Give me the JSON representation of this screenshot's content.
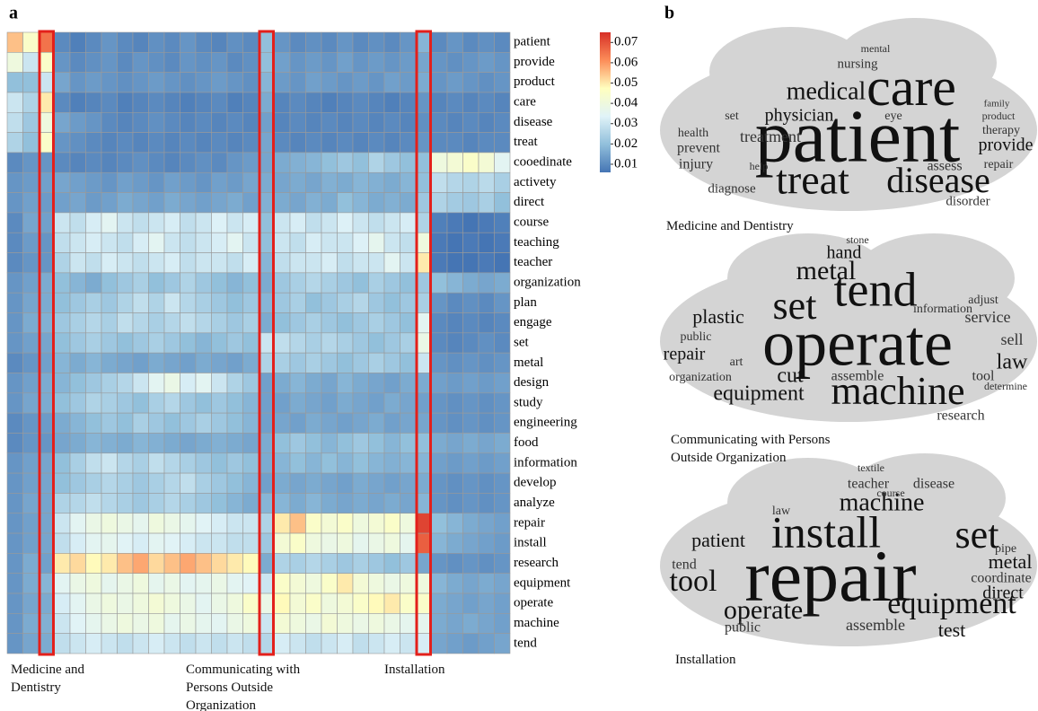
{
  "panel_labels": [
    "a",
    "b"
  ],
  "chart_data": {
    "type": "heatmap",
    "rows": [
      "patient",
      "provide",
      "product",
      "care",
      "disease",
      "treat",
      "cooedinate",
      "activety",
      "direct",
      "course",
      "teaching",
      "teacher",
      "organization",
      "plan",
      "engage",
      "set",
      "metal",
      "design",
      "study",
      "engineering",
      "food",
      "information",
      "develop",
      "analyze",
      "repair",
      "install",
      "research",
      "equipment",
      "operate",
      "machine",
      "tend"
    ],
    "categories": [
      null,
      null,
      "Medicine and Dentistry",
      null,
      null,
      null,
      null,
      null,
      null,
      null,
      null,
      null,
      null,
      null,
      null,
      null,
      "Communicating with Persons Outside Organization",
      null,
      null,
      null,
      null,
      null,
      null,
      null,
      null,
      null,
      "Installation",
      null,
      null,
      null,
      null,
      null
    ],
    "highlight_color": "#e3201b",
    "colormap": [
      "#4575b4",
      "#91bfdb",
      "#e0f3f8",
      "#ffffbf",
      "#fc8d59",
      "#d73027"
    ],
    "zlim": [
      0.006,
      0.075
    ],
    "zticks": [
      0.01,
      0.02,
      0.03,
      0.04,
      0.05,
      0.06,
      0.07
    ],
    "values": [
      [
        0.055,
        0.045,
        0.065,
        0.01,
        0.008,
        0.01,
        0.012,
        0.01,
        0.009,
        0.011,
        0.01,
        0.012,
        0.01,
        0.009,
        0.011,
        0.01,
        0.02,
        0.012,
        0.01,
        0.011,
        0.01,
        0.012,
        0.01,
        0.011,
        0.01,
        0.012,
        0.018,
        0.01,
        0.012,
        0.01,
        0.011,
        0.01
      ],
      [
        0.04,
        0.03,
        0.045,
        0.012,
        0.01,
        0.011,
        0.012,
        0.01,
        0.012,
        0.011,
        0.01,
        0.012,
        0.011,
        0.012,
        0.01,
        0.011,
        0.02,
        0.014,
        0.012,
        0.013,
        0.012,
        0.014,
        0.012,
        0.013,
        0.012,
        0.013,
        0.015,
        0.012,
        0.011,
        0.012,
        0.013,
        0.012
      ],
      [
        0.02,
        0.02,
        0.03,
        0.015,
        0.012,
        0.013,
        0.012,
        0.011,
        0.012,
        0.013,
        0.012,
        0.011,
        0.012,
        0.013,
        0.012,
        0.011,
        0.018,
        0.013,
        0.012,
        0.014,
        0.013,
        0.012,
        0.013,
        0.012,
        0.014,
        0.013,
        0.016,
        0.012,
        0.013,
        0.012,
        0.011,
        0.012
      ],
      [
        0.03,
        0.025,
        0.05,
        0.01,
        0.008,
        0.009,
        0.01,
        0.008,
        0.009,
        0.01,
        0.009,
        0.008,
        0.009,
        0.01,
        0.008,
        0.009,
        0.016,
        0.009,
        0.01,
        0.009,
        0.008,
        0.009,
        0.01,
        0.009,
        0.008,
        0.009,
        0.012,
        0.009,
        0.01,
        0.009,
        0.01,
        0.009
      ],
      [
        0.028,
        0.022,
        0.04,
        0.015,
        0.013,
        0.012,
        0.01,
        0.009,
        0.01,
        0.011,
        0.01,
        0.009,
        0.01,
        0.009,
        0.01,
        0.009,
        0.014,
        0.009,
        0.01,
        0.009,
        0.01,
        0.009,
        0.01,
        0.009,
        0.01,
        0.009,
        0.011,
        0.01,
        0.009,
        0.01,
        0.009,
        0.01
      ],
      [
        0.025,
        0.02,
        0.045,
        0.012,
        0.011,
        0.01,
        0.009,
        0.01,
        0.009,
        0.01,
        0.009,
        0.01,
        0.009,
        0.01,
        0.009,
        0.01,
        0.015,
        0.01,
        0.009,
        0.01,
        0.009,
        0.01,
        0.009,
        0.01,
        0.009,
        0.01,
        0.012,
        0.01,
        0.01,
        0.009,
        0.01,
        0.01
      ],
      [
        0.01,
        0.012,
        0.012,
        0.01,
        0.009,
        0.01,
        0.009,
        0.01,
        0.011,
        0.01,
        0.009,
        0.01,
        0.011,
        0.01,
        0.012,
        0.013,
        0.015,
        0.016,
        0.017,
        0.018,
        0.02,
        0.022,
        0.02,
        0.025,
        0.022,
        0.02,
        0.02,
        0.04,
        0.042,
        0.045,
        0.042,
        0.035
      ],
      [
        0.012,
        0.013,
        0.014,
        0.015,
        0.014,
        0.013,
        0.012,
        0.014,
        0.013,
        0.012,
        0.014,
        0.013,
        0.012,
        0.014,
        0.013,
        0.015,
        0.016,
        0.015,
        0.016,
        0.015,
        0.017,
        0.016,
        0.018,
        0.017,
        0.016,
        0.018,
        0.02,
        0.028,
        0.026,
        0.025,
        0.027,
        0.024
      ],
      [
        0.012,
        0.014,
        0.013,
        0.014,
        0.015,
        0.013,
        0.014,
        0.016,
        0.015,
        0.014,
        0.016,
        0.015,
        0.014,
        0.015,
        0.016,
        0.014,
        0.017,
        0.016,
        0.015,
        0.017,
        0.016,
        0.02,
        0.018,
        0.016,
        0.017,
        0.016,
        0.022,
        0.025,
        0.023,
        0.022,
        0.024,
        0.02
      ],
      [
        0.01,
        0.015,
        0.014,
        0.03,
        0.028,
        0.032,
        0.035,
        0.03,
        0.028,
        0.03,
        0.032,
        0.028,
        0.03,
        0.033,
        0.03,
        0.032,
        0.02,
        0.03,
        0.032,
        0.028,
        0.03,
        0.033,
        0.03,
        0.028,
        0.03,
        0.032,
        0.025,
        0.008,
        0.007,
        0.006,
        0.007,
        0.008
      ],
      [
        0.01,
        0.013,
        0.012,
        0.028,
        0.03,
        0.032,
        0.03,
        0.028,
        0.032,
        0.035,
        0.03,
        0.028,
        0.03,
        0.032,
        0.035,
        0.03,
        0.02,
        0.03,
        0.028,
        0.032,
        0.03,
        0.03,
        0.033,
        0.036,
        0.03,
        0.028,
        0.04,
        0.007,
        0.006,
        0.007,
        0.006,
        0.007
      ],
      [
        0.01,
        0.012,
        0.012,
        0.025,
        0.03,
        0.028,
        0.032,
        0.03,
        0.028,
        0.03,
        0.032,
        0.028,
        0.03,
        0.03,
        0.028,
        0.032,
        0.018,
        0.028,
        0.03,
        0.03,
        0.032,
        0.028,
        0.03,
        0.03,
        0.035,
        0.03,
        0.05,
        0.007,
        0.006,
        0.006,
        0.007,
        0.006
      ],
      [
        0.012,
        0.014,
        0.016,
        0.02,
        0.018,
        0.016,
        0.02,
        0.022,
        0.024,
        0.02,
        0.022,
        0.025,
        0.022,
        0.02,
        0.018,
        0.02,
        0.016,
        0.022,
        0.024,
        0.026,
        0.024,
        0.022,
        0.02,
        0.024,
        0.022,
        0.02,
        0.022,
        0.02,
        0.018,
        0.016,
        0.015,
        0.016
      ],
      [
        0.012,
        0.015,
        0.016,
        0.02,
        0.022,
        0.024,
        0.022,
        0.025,
        0.028,
        0.025,
        0.03,
        0.026,
        0.024,
        0.022,
        0.02,
        0.022,
        0.018,
        0.022,
        0.024,
        0.02,
        0.022,
        0.024,
        0.026,
        0.022,
        0.02,
        0.022,
        0.024,
        0.012,
        0.01,
        0.011,
        0.01,
        0.012
      ],
      [
        0.012,
        0.016,
        0.017,
        0.022,
        0.024,
        0.026,
        0.024,
        0.028,
        0.026,
        0.024,
        0.026,
        0.028,
        0.026,
        0.024,
        0.022,
        0.024,
        0.016,
        0.02,
        0.022,
        0.024,
        0.022,
        0.02,
        0.022,
        0.024,
        0.022,
        0.02,
        0.035,
        0.01,
        0.009,
        0.01,
        0.009,
        0.01
      ],
      [
        0.012,
        0.014,
        0.015,
        0.02,
        0.022,
        0.024,
        0.022,
        0.02,
        0.022,
        0.024,
        0.022,
        0.02,
        0.018,
        0.02,
        0.022,
        0.02,
        0.03,
        0.028,
        0.026,
        0.024,
        0.026,
        0.024,
        0.022,
        0.02,
        0.022,
        0.024,
        0.038,
        0.01,
        0.009,
        0.01,
        0.011,
        0.01
      ],
      [
        0.01,
        0.012,
        0.014,
        0.018,
        0.016,
        0.018,
        0.016,
        0.015,
        0.014,
        0.016,
        0.015,
        0.014,
        0.016,
        0.015,
        0.014,
        0.016,
        0.025,
        0.024,
        0.022,
        0.024,
        0.022,
        0.02,
        0.022,
        0.024,
        0.022,
        0.02,
        0.03,
        0.012,
        0.011,
        0.012,
        0.011,
        0.012
      ],
      [
        0.012,
        0.014,
        0.016,
        0.018,
        0.02,
        0.022,
        0.024,
        0.026,
        0.03,
        0.035,
        0.038,
        0.032,
        0.035,
        0.03,
        0.025,
        0.022,
        0.014,
        0.016,
        0.018,
        0.016,
        0.015,
        0.018,
        0.016,
        0.015,
        0.014,
        0.016,
        0.016,
        0.014,
        0.013,
        0.014,
        0.013,
        0.014
      ],
      [
        0.012,
        0.015,
        0.016,
        0.02,
        0.022,
        0.025,
        0.024,
        0.022,
        0.02,
        0.024,
        0.026,
        0.022,
        0.02,
        0.022,
        0.02,
        0.018,
        0.014,
        0.014,
        0.016,
        0.015,
        0.014,
        0.016,
        0.015,
        0.014,
        0.016,
        0.015,
        0.014,
        0.012,
        0.011,
        0.012,
        0.011,
        0.012
      ],
      [
        0.01,
        0.012,
        0.013,
        0.016,
        0.018,
        0.02,
        0.022,
        0.02,
        0.024,
        0.022,
        0.02,
        0.022,
        0.024,
        0.022,
        0.02,
        0.018,
        0.014,
        0.015,
        0.014,
        0.016,
        0.015,
        0.014,
        0.015,
        0.016,
        0.014,
        0.015,
        0.015,
        0.012,
        0.011,
        0.012,
        0.011,
        0.012
      ],
      [
        0.01,
        0.012,
        0.012,
        0.015,
        0.016,
        0.018,
        0.017,
        0.016,
        0.018,
        0.017,
        0.016,
        0.015,
        0.016,
        0.017,
        0.016,
        0.015,
        0.016,
        0.02,
        0.022,
        0.02,
        0.018,
        0.02,
        0.022,
        0.02,
        0.018,
        0.02,
        0.02,
        0.016,
        0.015,
        0.016,
        0.015,
        0.016
      ],
      [
        0.012,
        0.014,
        0.015,
        0.02,
        0.024,
        0.028,
        0.03,
        0.026,
        0.024,
        0.028,
        0.026,
        0.024,
        0.022,
        0.02,
        0.022,
        0.02,
        0.016,
        0.018,
        0.02,
        0.018,
        0.02,
        0.018,
        0.02,
        0.018,
        0.017,
        0.018,
        0.018,
        0.014,
        0.013,
        0.014,
        0.013,
        0.014
      ],
      [
        0.012,
        0.014,
        0.015,
        0.02,
        0.022,
        0.024,
        0.026,
        0.024,
        0.022,
        0.024,
        0.026,
        0.028,
        0.024,
        0.022,
        0.02,
        0.018,
        0.014,
        0.016,
        0.015,
        0.016,
        0.015,
        0.014,
        0.016,
        0.015,
        0.014,
        0.015,
        0.016,
        0.012,
        0.011,
        0.012,
        0.011,
        0.012
      ],
      [
        0.012,
        0.015,
        0.015,
        0.025,
        0.026,
        0.028,
        0.026,
        0.024,
        0.022,
        0.024,
        0.026,
        0.024,
        0.022,
        0.02,
        0.018,
        0.016,
        0.018,
        0.018,
        0.016,
        0.018,
        0.016,
        0.015,
        0.016,
        0.015,
        0.016,
        0.015,
        0.018,
        0.012,
        0.011,
        0.012,
        0.011,
        0.012
      ],
      [
        0.012,
        0.014,
        0.015,
        0.03,
        0.035,
        0.038,
        0.04,
        0.038,
        0.036,
        0.04,
        0.038,
        0.036,
        0.034,
        0.032,
        0.03,
        0.03,
        0.025,
        0.05,
        0.055,
        0.045,
        0.042,
        0.045,
        0.04,
        0.042,
        0.045,
        0.04,
        0.072,
        0.02,
        0.018,
        0.016,
        0.015,
        0.014
      ],
      [
        0.012,
        0.014,
        0.015,
        0.028,
        0.032,
        0.035,
        0.036,
        0.034,
        0.032,
        0.035,
        0.034,
        0.032,
        0.03,
        0.03,
        0.028,
        0.028,
        0.022,
        0.042,
        0.045,
        0.04,
        0.038,
        0.04,
        0.036,
        0.038,
        0.04,
        0.036,
        0.068,
        0.018,
        0.016,
        0.015,
        0.014,
        0.013
      ],
      [
        0.012,
        0.016,
        0.014,
        0.05,
        0.052,
        0.048,
        0.05,
        0.055,
        0.058,
        0.052,
        0.055,
        0.058,
        0.055,
        0.052,
        0.05,
        0.048,
        0.016,
        0.025,
        0.024,
        0.026,
        0.024,
        0.022,
        0.024,
        0.022,
        0.02,
        0.022,
        0.015,
        0.012,
        0.011,
        0.012,
        0.011,
        0.012
      ],
      [
        0.012,
        0.016,
        0.018,
        0.035,
        0.038,
        0.04,
        0.036,
        0.038,
        0.04,
        0.036,
        0.038,
        0.035,
        0.036,
        0.038,
        0.035,
        0.034,
        0.03,
        0.045,
        0.042,
        0.04,
        0.045,
        0.05,
        0.042,
        0.04,
        0.038,
        0.04,
        0.04,
        0.018,
        0.016,
        0.015,
        0.016,
        0.015
      ],
      [
        0.012,
        0.015,
        0.016,
        0.032,
        0.035,
        0.038,
        0.04,
        0.038,
        0.04,
        0.042,
        0.04,
        0.038,
        0.035,
        0.038,
        0.04,
        0.045,
        0.038,
        0.048,
        0.042,
        0.045,
        0.04,
        0.042,
        0.045,
        0.048,
        0.05,
        0.045,
        0.045,
        0.016,
        0.015,
        0.014,
        0.015,
        0.014
      ],
      [
        0.012,
        0.016,
        0.017,
        0.03,
        0.034,
        0.036,
        0.038,
        0.04,
        0.038,
        0.04,
        0.036,
        0.038,
        0.036,
        0.035,
        0.038,
        0.04,
        0.03,
        0.042,
        0.04,
        0.038,
        0.042,
        0.04,
        0.038,
        0.04,
        0.038,
        0.036,
        0.036,
        0.016,
        0.015,
        0.016,
        0.015,
        0.014
      ],
      [
        0.012,
        0.015,
        0.016,
        0.028,
        0.03,
        0.032,
        0.03,
        0.028,
        0.03,
        0.032,
        0.03,
        0.028,
        0.03,
        0.028,
        0.03,
        0.028,
        0.026,
        0.032,
        0.03,
        0.028,
        0.03,
        0.032,
        0.028,
        0.03,
        0.032,
        0.03,
        0.032,
        0.015,
        0.014,
        0.013,
        0.014,
        0.015
      ]
    ]
  },
  "word_clouds": [
    {
      "caption": "Medicine and Dentistry",
      "words": [
        "patient",
        "care",
        "treat",
        "disease",
        "medical",
        "physician",
        "treatment",
        "prevent",
        "injury",
        "health",
        "diagnose",
        "disorder",
        "assess",
        "repair",
        "provide",
        "therapy",
        "nursing",
        "mental",
        "eye",
        "set",
        "product",
        "family",
        "help"
      ]
    },
    {
      "caption": "Communicating with Persons Outside Organization",
      "words": [
        "operate",
        "tend",
        "machine",
        "set",
        "metal",
        "equipment",
        "plastic",
        "repair",
        "law",
        "sell",
        "service",
        "cut",
        "hand",
        "research",
        "tool",
        "assemble",
        "organization",
        "information",
        "adjust",
        "public",
        "art",
        "stone",
        "determine"
      ]
    },
    {
      "caption": "Installation",
      "words": [
        "repair",
        "install",
        "set",
        "machine",
        "equipment",
        "operate",
        "tool",
        "patient",
        "test",
        "direct",
        "metal",
        "coordinate",
        "tend",
        "assemble",
        "public",
        "teacher",
        "disease",
        "course",
        "law",
        "pipe",
        "textile"
      ]
    }
  ]
}
